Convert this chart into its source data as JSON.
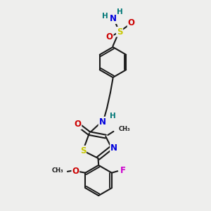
{
  "bg_color": "#eeeeed",
  "bond_color": "#1a1a1a",
  "bond_lw": 1.5,
  "font_size": 8.5,
  "colors": {
    "S": "#c8c800",
    "O": "#cc0000",
    "N": "#0000dd",
    "H": "#007777",
    "F": "#cc00cc",
    "C": "#1a1a1a"
  },
  "xlim": [
    0.5,
    8.0
  ],
  "ylim": [
    0.5,
    10.5
  ]
}
